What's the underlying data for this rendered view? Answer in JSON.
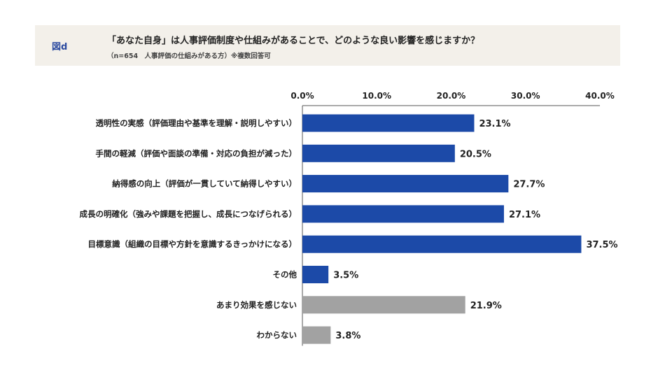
{
  "header": {
    "figure_label": "図d",
    "title": "「あなた自身」は人事評価制度や仕組みがあることで、どのような良い影響を感じますか？",
    "subtitle": "（n=654　人事評価の仕組みがある方）※複数回答可"
  },
  "colors": {
    "header_bg": "#f3f0ea",
    "bar_primary": "#1c4aa8",
    "bar_secondary": "#a2a2a2",
    "axis": "#555555"
  },
  "chart_data": {
    "type": "bar",
    "orientation": "horizontal",
    "title": "「あなた自身」は人事評価制度や仕組みがあることで、どのような良い影響を感じますか？",
    "xlabel": "",
    "ylabel": "",
    "xlim": [
      0,
      40
    ],
    "ticks": [
      "0.0%",
      "10.0%",
      "20.0%",
      "30.0%",
      "40.0%"
    ],
    "tick_values": [
      0,
      10,
      20,
      30,
      40
    ],
    "grid": false,
    "categories": [
      "透明性の実感（評価理由や基準を理解・説明しやすい）",
      "手間の軽減（評価や面談の準備・対応の負担が減った）",
      "納得感の向上（評価が一貫していて納得しやすい）",
      "成長の明確化（強みや課題を把握し、成長につなげられる）",
      "目標意識（組織の目標や方針を意識するきっかけになる）",
      "その他",
      "あまり効果を感じない",
      "わからない"
    ],
    "values": [
      23.1,
      20.5,
      27.7,
      27.1,
      37.5,
      3.5,
      21.9,
      3.8
    ],
    "value_labels": [
      "23.1%",
      "20.5%",
      "27.7%",
      "27.1%",
      "37.5%",
      "3.5%",
      "21.9%",
      "3.8%"
    ],
    "bar_color_groups": [
      "primary",
      "primary",
      "primary",
      "primary",
      "primary",
      "primary",
      "secondary",
      "secondary"
    ]
  }
}
